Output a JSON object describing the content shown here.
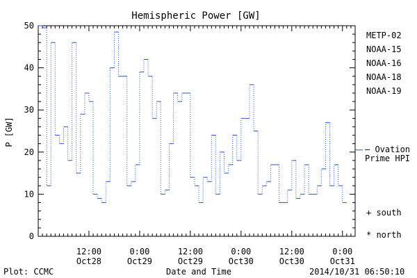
{
  "chart_data": {
    "type": "line",
    "title": "Hemispheric Power [GW]",
    "xlabel": "Date and Time",
    "ylabel": "P [GW]",
    "ylim": [
      0,
      50
    ],
    "yticks": [
      0,
      10,
      20,
      30,
      40,
      50
    ],
    "x_range_hours": [
      0,
      75
    ],
    "x_ticks": [
      {
        "hour": 12,
        "time": "12:00",
        "date": "Oct28"
      },
      {
        "hour": 24,
        "time": "0:00",
        "date": "Oct29"
      },
      {
        "hour": 36,
        "time": "12:00",
        "date": "Oct29"
      },
      {
        "hour": 48,
        "time": "0:00",
        "date": "Oct30"
      },
      {
        "hour": 60,
        "time": "12:00",
        "date": "Oct30"
      },
      {
        "hour": 72,
        "time": "0:00",
        "date": "Oct31"
      }
    ],
    "legend": {
      "placement": "right",
      "entries": [
        {
          "name": "METP-02",
          "color": "#000000"
        },
        {
          "name": "NOAA-15",
          "color": "#2255cc"
        },
        {
          "name": "NOAA-16",
          "color": "#22bbcc"
        },
        {
          "name": "NOAA-18",
          "color": "#33cc55"
        },
        {
          "name": "NOAA-19",
          "color": "#ee9922"
        }
      ]
    },
    "ovation": {
      "label_line1": "— Ovation",
      "label_line2": "Prime HPI",
      "value": 20.5,
      "color": "#2255cc"
    },
    "markers": {
      "south": "+ south",
      "north": "* north"
    },
    "series": [
      {
        "name": "NOAA-15",
        "color": "#2255cc",
        "points": [
          [
            0.5,
            50
          ],
          [
            1.5,
            49.5
          ],
          [
            2.5,
            12
          ],
          [
            3.5,
            46
          ],
          [
            4.5,
            24
          ],
          [
            5.5,
            22
          ],
          [
            6.5,
            26
          ],
          [
            7.5,
            18
          ],
          [
            8.5,
            46
          ],
          [
            9.5,
            15
          ],
          [
            10.5,
            29
          ],
          [
            11.5,
            34
          ],
          [
            12.5,
            32
          ],
          [
            13.5,
            10
          ],
          [
            14.5,
            9
          ],
          [
            15.5,
            8
          ],
          [
            16.5,
            13
          ],
          [
            17.5,
            40
          ],
          [
            18.5,
            48.5
          ],
          [
            19.5,
            38
          ],
          [
            20.5,
            38
          ],
          [
            21.5,
            12
          ],
          [
            22.5,
            13
          ],
          [
            23.5,
            17
          ],
          [
            24.5,
            39
          ],
          [
            25.5,
            42
          ],
          [
            26.5,
            38
          ],
          [
            27.5,
            28
          ],
          [
            28.5,
            32
          ],
          [
            29.5,
            10
          ],
          [
            30.5,
            11
          ],
          [
            31.5,
            22
          ],
          [
            32.5,
            34
          ],
          [
            33.5,
            32
          ],
          [
            34.5,
            34
          ],
          [
            35.5,
            34
          ],
          [
            36.5,
            14
          ],
          [
            37.5,
            12
          ],
          [
            38.5,
            8
          ],
          [
            39.5,
            14
          ],
          [
            40.5,
            13
          ],
          [
            41.5,
            24
          ],
          [
            42.5,
            10
          ],
          [
            43.5,
            20
          ],
          [
            44.5,
            15
          ],
          [
            45.5,
            17
          ],
          [
            46.5,
            24
          ],
          [
            47.5,
            18
          ],
          [
            48.5,
            28
          ],
          [
            49.5,
            28
          ],
          [
            50.5,
            36
          ],
          [
            51.5,
            25
          ],
          [
            52.5,
            10
          ],
          [
            53.5,
            12
          ],
          [
            54.5,
            13
          ],
          [
            55.5,
            17
          ],
          [
            56.5,
            17
          ],
          [
            57.5,
            8
          ],
          [
            58.5,
            8
          ],
          [
            59.5,
            11
          ],
          [
            60.5,
            18
          ],
          [
            61.5,
            9
          ],
          [
            62.5,
            10
          ],
          [
            63.5,
            17
          ],
          [
            64.5,
            10
          ],
          [
            65.5,
            10
          ],
          [
            66.5,
            12
          ],
          [
            67.5,
            16
          ],
          [
            68.5,
            27
          ],
          [
            69.5,
            12
          ],
          [
            70.5,
            17
          ],
          [
            71.5,
            12
          ],
          [
            72.5,
            8
          ]
        ]
      }
    ]
  },
  "footer": {
    "source": "Plot: CCMC",
    "timestamp": "2014/10/31  06:50:10"
  }
}
